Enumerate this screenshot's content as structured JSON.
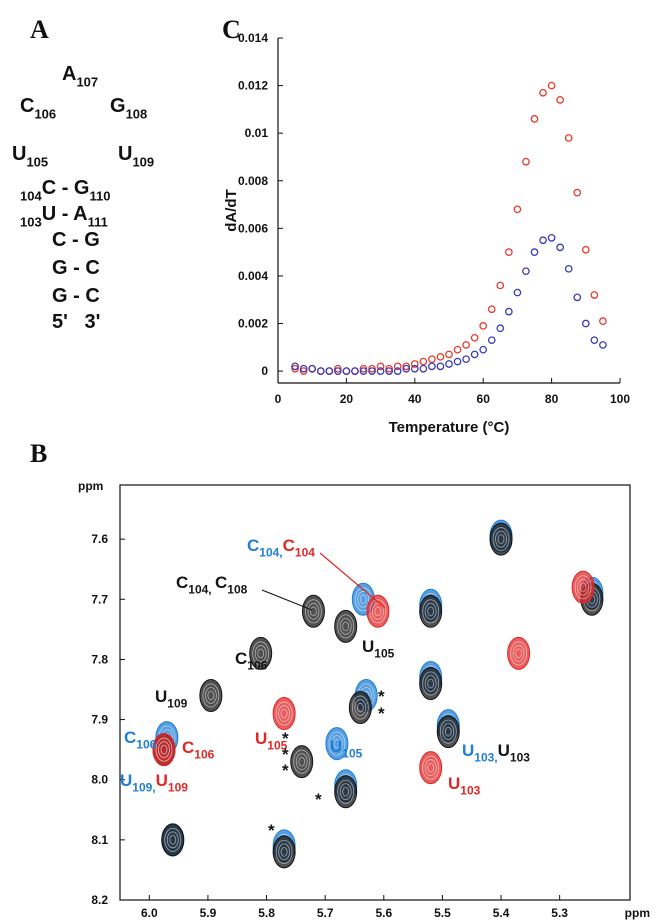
{
  "panel_labels": [
    "A",
    "C",
    "B"
  ],
  "hairpin": [
    {
      "main": "A",
      "sub": "107"
    },
    {
      "main": "C",
      "sub": "106"
    },
    {
      "main": "G",
      "sub": "108"
    },
    {
      "main": "U",
      "sub": "105"
    },
    {
      "main": "U",
      "sub": "109"
    },
    {
      "pre": "104",
      "main": "C - G",
      "sub": "110"
    },
    {
      "pre": "103",
      "main": "U - A",
      "sub": "111"
    },
    {
      "main": "C - G"
    },
    {
      "main": "G - C"
    },
    {
      "main": "G - C"
    },
    {
      "main": "5'   3'"
    }
  ],
  "chart_data": [
    {
      "type": "scatter",
      "xlabel": "Temperature (°C)",
      "ylabel": "dA/dT",
      "x": [
        5,
        7.5,
        10,
        12.5,
        15,
        17.5,
        20,
        22.5,
        25,
        27.5,
        30,
        32.5,
        35,
        37.5,
        40,
        42.5,
        45,
        47.5,
        50,
        52.5,
        55,
        57.5,
        60,
        62.5,
        65,
        67.5,
        70,
        72.5,
        75,
        77.5,
        80,
        82.5,
        85,
        87.5,
        90,
        92.5,
        95
      ],
      "series": [
        {
          "color": "#e8392b",
          "values": [
            0.0001,
            0,
            0.0001,
            0,
            0,
            0.0001,
            0,
            0,
            0.0001,
            0.0001,
            0.0002,
            0.0001,
            0.0002,
            0.0002,
            0.0003,
            0.0004,
            0.0005,
            0.0006,
            0.0007,
            0.0009,
            0.0011,
            0.0014,
            0.0019,
            0.0026,
            0.0036,
            0.005,
            0.0068,
            0.0088,
            0.0106,
            0.0117,
            0.012,
            0.0114,
            0.0098,
            0.0075,
            0.0051,
            0.0032,
            0.0021
          ]
        },
        {
          "color": "#3a3ab8",
          "values": [
            0.0002,
            0.0001,
            0.0001,
            0,
            0,
            0,
            0,
            0,
            0,
            0,
            0,
            0,
            0,
            0.0001,
            0.0001,
            0.0001,
            0.0002,
            0.0002,
            0.0003,
            0.0004,
            0.0005,
            0.0007,
            0.0009,
            0.0013,
            0.0018,
            0.0025,
            0.0033,
            0.0042,
            0.005,
            0.0055,
            0.0056,
            0.0052,
            0.0043,
            0.0031,
            0.002,
            0.0013,
            0.0011
          ]
        }
      ],
      "xlim": [
        0,
        100
      ],
      "ylim": [
        -0.0005,
        0.014
      ],
      "xticks": [
        0,
        20,
        40,
        60,
        80,
        100
      ],
      "yticks": [
        0,
        0.002,
        0.004,
        0.006,
        0.008,
        0.01,
        0.012,
        0.014
      ]
    },
    {
      "type": "contour-peaks",
      "xlabel": "ppm",
      "ylabel": "ppm",
      "x_inverted": true,
      "y_inverted": true,
      "xlim": [
        6.05,
        5.18
      ],
      "ylim": [
        7.51,
        8.2
      ],
      "xticks": [
        {
          "value": 6,
          "label": "6.0"
        },
        5.9,
        5.8,
        5.7,
        5.6,
        5.5,
        5.4,
        5.3
      ],
      "yticks": [
        7.6,
        7.7,
        7.8,
        7.9,
        {
          "value": 8,
          "label": "8.0"
        },
        8.1,
        8.2
      ],
      "series": [
        {
          "color": "#1f7fd6",
          "x": [
            5.4,
            5.245,
            5.52,
            5.52,
            5.635,
            5.97,
            5.63,
            5.68,
            5.49,
            5.665,
            5.96,
            5.77
          ],
          "values": [
            7.595,
            7.69,
            7.71,
            7.83,
            7.7,
            7.93,
            7.86,
            7.94,
            7.91,
            8.01,
            8.1,
            8.11
          ]
        },
        {
          "color": "#151515",
          "x": [
            5.4,
            5.245,
            5.52,
            5.52,
            5.72,
            5.665,
            5.81,
            5.895,
            5.975,
            5.64,
            5.74,
            5.49,
            5.665,
            5.96,
            5.77
          ],
          "values": [
            7.6,
            7.7,
            7.72,
            7.84,
            7.72,
            7.745,
            7.79,
            7.86,
            7.95,
            7.88,
            7.97,
            7.92,
            8.02,
            8.1,
            8.12
          ]
        },
        {
          "color": "#e02828",
          "x": [
            5.26,
            5.37,
            5.61,
            5.975,
            5.77,
            5.52
          ],
          "values": [
            7.68,
            7.79,
            7.72,
            7.95,
            7.89,
            7.98
          ]
        }
      ],
      "annotations": [
        {
          "parts": [
            {
              "text": "C",
              "sub": "104,",
              "color": "#1f7fd6"
            },
            {
              "text": "C",
              "sub": "104",
              "color": "#e02828"
            }
          ]
        },
        {
          "parts": [
            {
              "text": "C",
              "sub": "104, ",
              "color": "#151515"
            },
            {
              "text": "C",
              "sub": "108",
              "color": "#151515"
            }
          ]
        },
        {
          "parts": [
            {
              "text": "U",
              "sub": "105",
              "color": "#151515"
            }
          ]
        },
        {
          "parts": [
            {
              "text": "C",
              "sub": "106",
              "color": "#151515"
            }
          ]
        },
        {
          "parts": [
            {
              "text": "U",
              "sub": "109",
              "color": "#151515"
            }
          ]
        },
        {
          "parts": [
            {
              "text": "C",
              "sub": "106",
              "color": "#1f7fd6"
            }
          ]
        },
        {
          "parts": [
            {
              "text": "C",
              "sub": "106",
              "color": "#e02828"
            }
          ]
        },
        {
          "parts": [
            {
              "text": "U",
              "sub": "105",
              "color": "#e02828"
            }
          ]
        },
        {
          "parts": [
            {
              "text": "U",
              "sub": "105",
              "color": "#1f7fd6"
            }
          ]
        },
        {
          "parts": [
            {
              "text": "U",
              "sub": "109,",
              "color": "#1f7fd6"
            },
            {
              "text": "U",
              "sub": "109",
              "color": "#e02828"
            }
          ]
        },
        {
          "parts": [
            {
              "text": "U",
              "sub": "103,",
              "color": "#1f7fd6"
            },
            {
              "text": "U",
              "sub": "103",
              "color": "#151515"
            }
          ]
        },
        {
          "parts": [
            {
              "text": "U",
              "sub": "103",
              "color": "#e02828"
            }
          ]
        },
        {
          "parts": [
            {
              "text": "*",
              "color": "#151515"
            }
          ]
        },
        {
          "parts": [
            {
              "text": "*",
              "color": "#151515"
            }
          ]
        },
        {
          "parts": [
            {
              "text": "*",
              "color": "#151515"
            }
          ]
        },
        {
          "parts": [
            {
              "text": "*",
              "color": "#151515"
            }
          ]
        },
        {
          "parts": [
            {
              "text": "*",
              "color": "#151515"
            }
          ]
        },
        {
          "parts": [
            {
              "text": "*",
              "color": "#151515"
            }
          ]
        },
        {
          "parts": [
            {
              "text": "*",
              "color": "#151515"
            }
          ]
        }
      ]
    }
  ]
}
